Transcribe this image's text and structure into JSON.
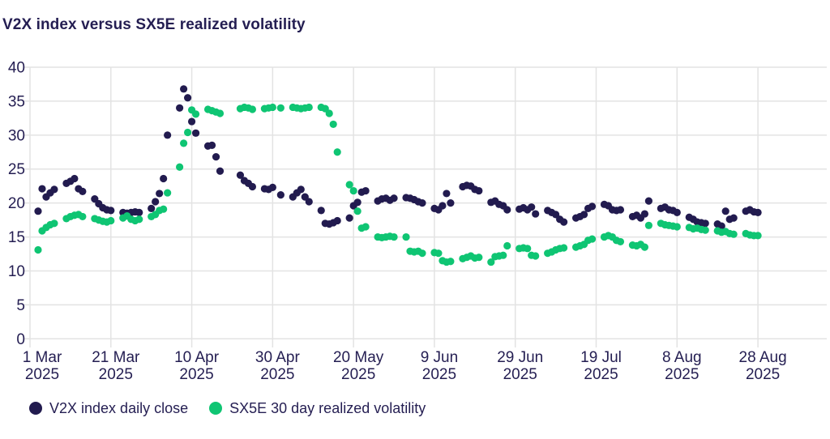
{
  "page": {
    "background": "#ffffff"
  },
  "chart_data": {
    "type": "scatter",
    "title": "V2X index versus SX5E realized volatility",
    "xlabel": "",
    "ylabel": "",
    "grid": true,
    "legend_position": "bottom-left",
    "colors": {
      "text": "#241e52",
      "grid": "#e3e3e3",
      "background": "#ffffff"
    },
    "x_axis": {
      "unit": "days-since-1-Mar-2025",
      "domain": [
        0,
        180
      ],
      "ticks": [
        {
          "day": 0,
          "label": "1 Mar",
          "year": "2025"
        },
        {
          "day": 20,
          "label": "21 Mar",
          "year": "2025"
        },
        {
          "day": 40,
          "label": "10 Apr",
          "year": "2025"
        },
        {
          "day": 60,
          "label": "30 Apr",
          "year": "2025"
        },
        {
          "day": 80,
          "label": "20 May",
          "year": "2025"
        },
        {
          "day": 100,
          "label": "9 Jun",
          "year": "2025"
        },
        {
          "day": 120,
          "label": "29 Jun",
          "year": "2025"
        },
        {
          "day": 140,
          "label": "19 Jul",
          "year": "2025"
        },
        {
          "day": 160,
          "label": "8 Aug",
          "year": "2025"
        },
        {
          "day": 180,
          "label": "28 Aug",
          "year": "2025"
        }
      ]
    },
    "y_axis": {
      "range": [
        0,
        40
      ],
      "ticks": [
        0,
        5,
        10,
        15,
        20,
        25,
        30,
        35,
        40
      ]
    },
    "series": [
      {
        "name": "V2X index daily close",
        "color": "#221b4f",
        "points": [
          [
            2,
            18.8
          ],
          [
            3,
            22.1
          ],
          [
            4,
            20.9
          ],
          [
            5,
            21.5
          ],
          [
            6,
            22.0
          ],
          [
            9,
            22.9
          ],
          [
            10,
            23.2
          ],
          [
            11,
            23.6
          ],
          [
            12,
            22.1
          ],
          [
            13,
            21.7
          ],
          [
            16,
            20.6
          ],
          [
            17,
            19.9
          ],
          [
            18,
            19.3
          ],
          [
            19,
            19.0
          ],
          [
            20,
            18.9
          ],
          [
            23,
            18.6
          ],
          [
            24,
            18.5
          ],
          [
            25,
            18.6
          ],
          [
            26,
            18.7
          ],
          [
            27,
            18.6
          ],
          [
            30,
            19.2
          ],
          [
            31,
            20.2
          ],
          [
            32,
            21.4
          ],
          [
            33,
            23.6
          ],
          [
            34,
            30.0
          ],
          [
            37,
            34.0
          ],
          [
            38,
            36.8
          ],
          [
            39,
            35.5
          ],
          [
            40,
            32.0
          ],
          [
            41,
            30.3
          ],
          [
            44,
            28.4
          ],
          [
            45,
            28.5
          ],
          [
            46,
            26.8
          ],
          [
            47,
            24.7
          ],
          [
            52,
            24.1
          ],
          [
            53,
            23.3
          ],
          [
            54,
            22.9
          ],
          [
            55,
            22.4
          ],
          [
            58,
            22.1
          ],
          [
            59,
            22.0
          ],
          [
            60,
            22.3
          ],
          [
            62,
            21.2
          ],
          [
            65,
            20.9
          ],
          [
            66,
            21.5
          ],
          [
            67,
            22.0
          ],
          [
            68,
            20.9
          ],
          [
            69,
            20.2
          ],
          [
            72,
            18.9
          ],
          [
            73,
            17.0
          ],
          [
            74,
            16.9
          ],
          [
            75,
            17.1
          ],
          [
            76,
            17.4
          ],
          [
            79,
            17.8
          ],
          [
            80,
            19.6
          ],
          [
            81,
            20.1
          ],
          [
            82,
            21.6
          ],
          [
            83,
            21.8
          ],
          [
            86,
            20.3
          ],
          [
            87,
            20.6
          ],
          [
            88,
            20.7
          ],
          [
            89,
            20.4
          ],
          [
            90,
            20.7
          ],
          [
            93,
            20.8
          ],
          [
            94,
            20.7
          ],
          [
            95,
            20.5
          ],
          [
            96,
            20.2
          ],
          [
            97,
            20.0
          ],
          [
            100,
            19.2
          ],
          [
            101,
            19.0
          ],
          [
            102,
            19.6
          ],
          [
            103,
            21.4
          ],
          [
            104,
            20.0
          ],
          [
            107,
            22.4
          ],
          [
            108,
            22.6
          ],
          [
            109,
            22.5
          ],
          [
            110,
            22.0
          ],
          [
            111,
            21.8
          ],
          [
            114,
            20.1
          ],
          [
            115,
            20.3
          ],
          [
            116,
            19.8
          ],
          [
            117,
            19.6
          ],
          [
            118,
            19.0
          ],
          [
            121,
            19.1
          ],
          [
            122,
            19.3
          ],
          [
            123,
            19.0
          ],
          [
            124,
            19.4
          ],
          [
            125,
            18.4
          ],
          [
            128,
            18.9
          ],
          [
            129,
            18.6
          ],
          [
            130,
            18.3
          ],
          [
            131,
            17.6
          ],
          [
            132,
            17.2
          ],
          [
            135,
            17.8
          ],
          [
            136,
            18.0
          ],
          [
            137,
            18.3
          ],
          [
            138,
            19.2
          ],
          [
            139,
            19.5
          ],
          [
            142,
            19.8
          ],
          [
            143,
            19.6
          ],
          [
            144,
            19.0
          ],
          [
            145,
            18.9
          ],
          [
            146,
            19.0
          ],
          [
            149,
            18.0
          ],
          [
            150,
            18.2
          ],
          [
            151,
            17.8
          ],
          [
            152,
            18.4
          ],
          [
            153,
            20.3
          ],
          [
            156,
            19.2
          ],
          [
            157,
            19.4
          ],
          [
            158,
            19.0
          ],
          [
            159,
            18.9
          ],
          [
            160,
            18.6
          ],
          [
            163,
            17.9
          ],
          [
            164,
            17.6
          ],
          [
            165,
            17.2
          ],
          [
            166,
            17.1
          ],
          [
            167,
            17.0
          ],
          [
            170,
            16.9
          ],
          [
            171,
            16.6
          ],
          [
            172,
            18.8
          ],
          [
            173,
            17.6
          ],
          [
            174,
            17.8
          ],
          [
            177,
            18.8
          ],
          [
            178,
            19.0
          ],
          [
            179,
            18.7
          ],
          [
            180,
            18.6
          ]
        ]
      },
      {
        "name": "SX5E 30 day realized volatility",
        "color": "#0fc573",
        "points": [
          [
            2,
            13.1
          ],
          [
            3,
            15.9
          ],
          [
            4,
            16.4
          ],
          [
            5,
            16.8
          ],
          [
            6,
            17.0
          ],
          [
            9,
            17.7
          ],
          [
            10,
            18.0
          ],
          [
            11,
            18.2
          ],
          [
            12,
            18.3
          ],
          [
            13,
            18.0
          ],
          [
            16,
            17.7
          ],
          [
            17,
            17.5
          ],
          [
            18,
            17.3
          ],
          [
            19,
            17.2
          ],
          [
            20,
            17.4
          ],
          [
            23,
            17.8
          ],
          [
            24,
            18.1
          ],
          [
            25,
            17.6
          ],
          [
            26,
            17.4
          ],
          [
            27,
            17.6
          ],
          [
            30,
            18.0
          ],
          [
            31,
            18.3
          ],
          [
            32,
            18.9
          ],
          [
            33,
            19.1
          ],
          [
            34,
            21.5
          ],
          [
            37,
            25.3
          ],
          [
            38,
            28.8
          ],
          [
            39,
            30.4
          ],
          [
            40,
            33.7
          ],
          [
            41,
            33.1
          ],
          [
            44,
            33.8
          ],
          [
            45,
            33.6
          ],
          [
            46,
            33.4
          ],
          [
            47,
            33.2
          ],
          [
            52,
            33.9
          ],
          [
            53,
            34.1
          ],
          [
            54,
            34.0
          ],
          [
            55,
            33.8
          ],
          [
            58,
            33.9
          ],
          [
            59,
            34.0
          ],
          [
            60,
            34.1
          ],
          [
            62,
            34.0
          ],
          [
            65,
            34.1
          ],
          [
            66,
            34.0
          ],
          [
            67,
            33.9
          ],
          [
            68,
            34.0
          ],
          [
            69,
            34.1
          ],
          [
            72,
            34.1
          ],
          [
            73,
            33.9
          ],
          [
            74,
            33.2
          ],
          [
            75,
            31.6
          ],
          [
            76,
            27.5
          ],
          [
            79,
            22.7
          ],
          [
            80,
            21.8
          ],
          [
            81,
            18.8
          ],
          [
            82,
            16.3
          ],
          [
            83,
            16.5
          ],
          [
            86,
            15.0
          ],
          [
            87,
            14.9
          ],
          [
            88,
            15.0
          ],
          [
            89,
            15.1
          ],
          [
            90,
            15.0
          ],
          [
            93,
            15.0
          ],
          [
            94,
            12.9
          ],
          [
            95,
            12.8
          ],
          [
            96,
            12.9
          ],
          [
            97,
            12.6
          ],
          [
            100,
            12.7
          ],
          [
            101,
            12.6
          ],
          [
            102,
            11.5
          ],
          [
            103,
            11.3
          ],
          [
            104,
            11.4
          ],
          [
            107,
            11.8
          ],
          [
            108,
            12.0
          ],
          [
            109,
            12.2
          ],
          [
            110,
            11.9
          ],
          [
            111,
            12.0
          ],
          [
            114,
            11.3
          ],
          [
            115,
            12.1
          ],
          [
            116,
            12.2
          ],
          [
            117,
            12.3
          ],
          [
            118,
            13.7
          ],
          [
            121,
            13.3
          ],
          [
            122,
            13.4
          ],
          [
            123,
            13.3
          ],
          [
            124,
            12.3
          ],
          [
            125,
            12.2
          ],
          [
            128,
            12.6
          ],
          [
            129,
            12.8
          ],
          [
            130,
            13.1
          ],
          [
            131,
            13.3
          ],
          [
            132,
            13.4
          ],
          [
            135,
            13.5
          ],
          [
            136,
            13.7
          ],
          [
            137,
            13.9
          ],
          [
            138,
            14.5
          ],
          [
            139,
            14.7
          ],
          [
            142,
            15.0
          ],
          [
            143,
            15.2
          ],
          [
            144,
            15.0
          ],
          [
            145,
            14.5
          ],
          [
            146,
            14.3
          ],
          [
            149,
            13.8
          ],
          [
            150,
            13.7
          ],
          [
            151,
            13.9
          ],
          [
            152,
            13.5
          ],
          [
            153,
            16.7
          ],
          [
            156,
            17.0
          ],
          [
            157,
            16.8
          ],
          [
            158,
            16.7
          ],
          [
            159,
            16.6
          ],
          [
            160,
            16.5
          ],
          [
            163,
            16.4
          ],
          [
            164,
            16.2
          ],
          [
            165,
            16.3
          ],
          [
            166,
            16.1
          ],
          [
            167,
            16.0
          ],
          [
            170,
            15.9
          ],
          [
            171,
            15.7
          ],
          [
            172,
            15.8
          ],
          [
            173,
            15.5
          ],
          [
            174,
            15.4
          ],
          [
            177,
            15.5
          ],
          [
            178,
            15.3
          ],
          [
            179,
            15.2
          ],
          [
            180,
            15.2
          ]
        ]
      }
    ]
  }
}
